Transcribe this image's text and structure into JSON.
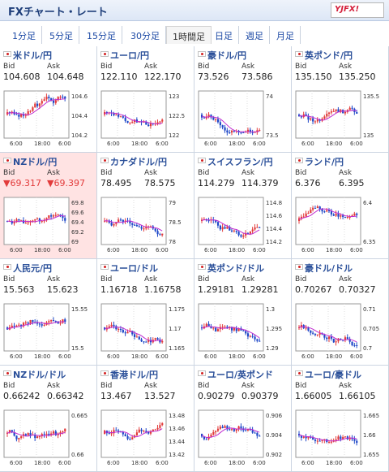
{
  "app": {
    "title": "FXチャート・レート",
    "logo": "YJFX!"
  },
  "tabs": [
    "1分足",
    "5分足",
    "15分足",
    "30分足",
    "1時間足",
    "日足",
    "週足",
    "月足"
  ],
  "active_tab": "1時間足",
  "bid_label": "Bid",
  "ask_label": "Ask",
  "pairs": [
    {
      "name": "米ドル/円",
      "bid": "104.608",
      "ask": "104.648",
      "ticks": [
        "104.6",
        "104.4",
        "104.2"
      ],
      "x": [
        "6:00",
        "18:00",
        "6:00"
      ],
      "trend": "up",
      "hl": false,
      "dn": false
    },
    {
      "name": "ユーロ/円",
      "bid": "122.110",
      "ask": "122.170",
      "ticks": [
        "123",
        "122.5",
        "122"
      ],
      "x": [
        "6:00",
        "18:00",
        "6:00"
      ],
      "trend": "down",
      "hl": false,
      "dn": false
    },
    {
      "name": "豪ドル/円",
      "bid": "73.526",
      "ask": "73.586",
      "ticks": [
        "74",
        "73.5"
      ],
      "x": [
        "6:00",
        "18:00",
        "6:00"
      ],
      "trend": "down",
      "hl": false,
      "dn": false
    },
    {
      "name": "英ポンド/円",
      "bid": "135.150",
      "ask": "135.250",
      "ticks": [
        "135.5",
        "135"
      ],
      "x": [
        "6:00",
        "18:00",
        "6:00"
      ],
      "trend": "down",
      "hl": false,
      "dn": false
    },
    {
      "name": "NZドル/円",
      "bid": "▼69.317",
      "ask": "▼69.397",
      "ticks": [
        "69.8",
        "69.6",
        "69.4",
        "69.2",
        "69"
      ],
      "x": [
        "6:00",
        "18:00",
        "6:00"
      ],
      "trend": "flat",
      "hl": true,
      "dn": true
    },
    {
      "name": "カナダドル/円",
      "bid": "78.495",
      "ask": "78.575",
      "ticks": [
        "79",
        "78.5",
        "78"
      ],
      "x": [
        "6:00",
        "18:00",
        "6:00"
      ],
      "trend": "down",
      "hl": false,
      "dn": false
    },
    {
      "name": "スイスフラン/円",
      "bid": "114.279",
      "ask": "114.379",
      "ticks": [
        "114.8",
        "114.6",
        "114.4",
        "114.2"
      ],
      "x": [
        "6:00",
        "18:00",
        "6:00"
      ],
      "trend": "down",
      "hl": false,
      "dn": false
    },
    {
      "name": "ランド/円",
      "bid": "6.376",
      "ask": "6.395",
      "ticks": [
        "6.4",
        "6.35"
      ],
      "x": [
        "6:00",
        "18:00",
        "6:00"
      ],
      "trend": "flat",
      "hl": false,
      "dn": false
    },
    {
      "name": "人民元/円",
      "bid": "15.563",
      "ask": "15.623",
      "ticks": [
        "15.55",
        "15.5"
      ],
      "x": [
        "6:00",
        "18:00",
        "6:00"
      ],
      "trend": "up",
      "hl": false,
      "dn": false
    },
    {
      "name": "ユーロ/ドル",
      "bid": "1.16718",
      "ask": "1.16758",
      "ticks": [
        "1.175",
        "1.17",
        "1.165"
      ],
      "x": [
        "6:00",
        "18:00",
        "6:00"
      ],
      "trend": "down",
      "hl": false,
      "dn": false
    },
    {
      "name": "英ポンド/ドル",
      "bid": "1.29181",
      "ask": "1.29281",
      "ticks": [
        "1.3",
        "1.295",
        "1.29"
      ],
      "x": [
        "6:00",
        "18:00",
        "6:00"
      ],
      "trend": "down",
      "hl": false,
      "dn": false
    },
    {
      "name": "豪ドル/ドル",
      "bid": "0.70267",
      "ask": "0.70327",
      "ticks": [
        "0.71",
        "0.705",
        "0.7"
      ],
      "x": [
        "6:00",
        "18:00",
        "6:00"
      ],
      "trend": "down",
      "hl": false,
      "dn": false
    },
    {
      "name": "NZドル/ドル",
      "bid": "0.66242",
      "ask": "0.66342",
      "ticks": [
        "0.665",
        "0.66"
      ],
      "x": [
        "6:00",
        "18:00",
        "6:00"
      ],
      "trend": "down",
      "hl": false,
      "dn": false
    },
    {
      "name": "香港ドル/円",
      "bid": "13.467",
      "ask": "13.527",
      "ticks": [
        "13.48",
        "13.46",
        "13.44",
        "13.42"
      ],
      "x": [
        "6:00",
        "18:00",
        "6:00"
      ],
      "trend": "up",
      "hl": false,
      "dn": false
    },
    {
      "name": "ユーロ/英ポンド",
      "bid": "0.90279",
      "ask": "0.90379",
      "ticks": [
        "0.906",
        "0.904",
        "0.902"
      ],
      "x": [
        "6:00",
        "18:00",
        "6:00"
      ],
      "trend": "flat",
      "hl": false,
      "dn": false
    },
    {
      "name": "ユーロ/豪ドル",
      "bid": "1.66005",
      "ask": "1.66105",
      "ticks": [
        "1.665",
        "1.66",
        "1.655"
      ],
      "x": [
        "6:00",
        "18:00",
        "6:00"
      ],
      "trend": "flat",
      "hl": false,
      "dn": false
    }
  ],
  "colors": {
    "up": "#e23b3b",
    "down": "#1f48c8",
    "ma": "#c02bd0",
    "accent": "#1d4aa5"
  }
}
